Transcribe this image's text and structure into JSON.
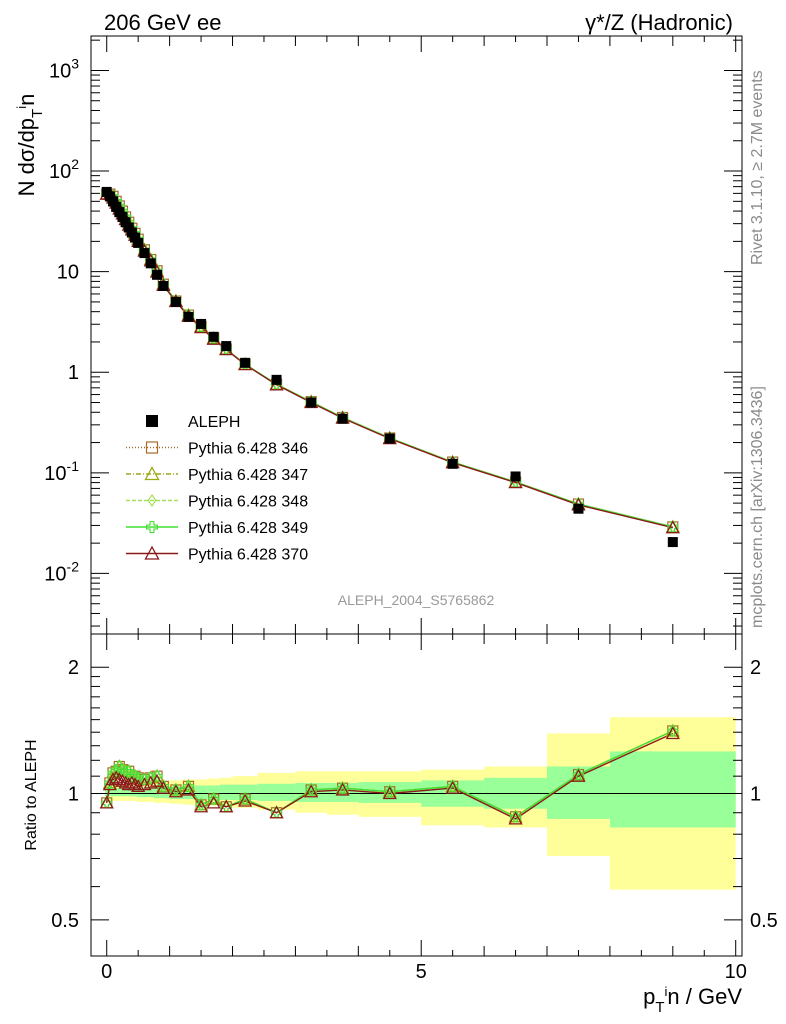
{
  "header": {
    "left": "206 GeV ee",
    "right": "γ*/Z (Hadronic)"
  },
  "side_labels": {
    "top": "Rivet 3.1.10, ≥ 2.7M events",
    "bottom": "mcplots.cern.ch [arXiv:1306.3436]"
  },
  "analysis_label": "ALEPH_2004_S5765862",
  "colors": {
    "data": "#000000",
    "p346": "#a86b2b",
    "p347": "#9aa814",
    "p348": "#a6e05a",
    "p349": "#44dd33",
    "p370": "#8b1a1a",
    "band_inner": "#99ff99",
    "band_outer": "#ffff99"
  },
  "chart_data": [
    {
      "type": "scatter",
      "panel": "main",
      "ylabel": "N dσ/dpTin",
      "yscale": "log",
      "ylim": [
        0.0025,
        2200
      ],
      "xlim": [
        -0.25,
        10.1
      ],
      "yticks": [
        "10^3",
        "10^2",
        "10",
        "1",
        "10^-1",
        "10^-2"
      ],
      "legend_placement": "lower-left",
      "x": [
        0.0,
        0.05,
        0.1,
        0.15,
        0.2,
        0.25,
        0.3,
        0.35,
        0.4,
        0.45,
        0.5,
        0.6,
        0.7,
        0.8,
        0.9,
        1.1,
        1.3,
        1.5,
        1.7,
        1.9,
        2.2,
        2.7,
        3.25,
        3.75,
        4.5,
        5.5,
        6.5,
        7.5,
        9.0
      ],
      "series": [
        {
          "name": "ALEPH",
          "marker": "square",
          "values": [
            62,
            56,
            50,
            44,
            39,
            35,
            31,
            27.5,
            24.5,
            21.8,
            19.3,
            15.3,
            12.1,
            9.3,
            7.2,
            5.0,
            3.55,
            3.02,
            2.25,
            1.82,
            1.24,
            0.84,
            0.5,
            0.345,
            0.219,
            0.123,
            0.092,
            0.044,
            0.0205
          ]
        },
        {
          "name": "Pythia 6.428 346",
          "marker": "open-square",
          "values": [
            59,
            59,
            56,
            50,
            45,
            40,
            35,
            31,
            27,
            24,
            21,
            16.5,
            13.2,
            10.2,
            7.5,
            5.1,
            3.7,
            2.85,
            2.18,
            1.7,
            1.2,
            0.76,
            0.51,
            0.355,
            0.222,
            0.128,
            0.081,
            0.049,
            0.029
          ]
        },
        {
          "name": "Pythia 6.428 347",
          "marker": "open-triangle",
          "values": [
            59,
            59,
            56,
            50,
            45,
            40,
            35,
            31,
            27,
            24,
            21,
            16.5,
            13.2,
            10.2,
            7.5,
            5.1,
            3.7,
            2.85,
            2.18,
            1.7,
            1.2,
            0.76,
            0.51,
            0.355,
            0.222,
            0.128,
            0.081,
            0.049,
            0.029
          ]
        },
        {
          "name": "Pythia 6.428 348",
          "marker": "open-diamond",
          "values": [
            59,
            59,
            56,
            50,
            45,
            40,
            35,
            31,
            27,
            24,
            21,
            16.5,
            13.2,
            10.2,
            7.5,
            5.1,
            3.7,
            2.85,
            2.18,
            1.7,
            1.2,
            0.76,
            0.51,
            0.355,
            0.222,
            0.128,
            0.081,
            0.049,
            0.029
          ]
        },
        {
          "name": "Pythia 6.428 349",
          "marker": "open-cross",
          "values": [
            59,
            59,
            56,
            50,
            45,
            40,
            35,
            31,
            27,
            24,
            21,
            16.5,
            13.2,
            10.2,
            7.5,
            5.1,
            3.7,
            2.85,
            2.18,
            1.7,
            1.2,
            0.76,
            0.51,
            0.355,
            0.222,
            0.128,
            0.081,
            0.049,
            0.029
          ]
        },
        {
          "name": "Pythia 6.428 370",
          "marker": "open-triangle",
          "values": [
            59,
            59,
            54,
            48,
            42,
            37.5,
            33,
            29,
            26,
            23,
            20,
            16,
            12.8,
            9.9,
            7.3,
            5.05,
            3.6,
            2.78,
            2.13,
            1.68,
            1.19,
            0.75,
            0.5,
            0.35,
            0.219,
            0.126,
            0.08,
            0.048,
            0.0285
          ]
        }
      ]
    },
    {
      "type": "line",
      "panel": "ratio",
      "xlabel": "pTin / GeV",
      "ylabel": "Ratio to ALEPH",
      "xlim": [
        -0.25,
        10.1
      ],
      "yscale": "log",
      "ylim": [
        0.41,
        2.4
      ],
      "xticks": [
        "0",
        "5",
        "10"
      ],
      "yticks": [
        "0.5",
        "1",
        "2"
      ],
      "x": [
        0.0,
        0.05,
        0.1,
        0.15,
        0.2,
        0.25,
        0.3,
        0.35,
        0.4,
        0.45,
        0.5,
        0.6,
        0.7,
        0.8,
        0.9,
        1.1,
        1.3,
        1.5,
        1.7,
        1.9,
        2.2,
        2.7,
        3.25,
        3.75,
        4.5,
        5.5,
        6.5,
        7.5,
        9.0
      ],
      "band_edges": [
        -0.025,
        0.025,
        0.075,
        0.125,
        0.175,
        0.225,
        0.275,
        0.325,
        0.375,
        0.425,
        0.475,
        0.55,
        0.65,
        0.75,
        0.85,
        1.0,
        1.2,
        1.4,
        1.6,
        1.8,
        2.0,
        2.4,
        3.0,
        3.5,
        4.0,
        5.0,
        6.0,
        7.0,
        8.0,
        10.0
      ],
      "band_inner": [
        [
          0.985,
          1.03
        ],
        [
          0.985,
          1.03
        ],
        [
          0.985,
          1.03
        ],
        [
          0.985,
          1.03
        ],
        [
          0.985,
          1.03
        ],
        [
          0.985,
          1.03
        ],
        [
          0.985,
          1.03
        ],
        [
          0.985,
          1.03
        ],
        [
          0.985,
          1.03
        ],
        [
          0.985,
          1.03
        ],
        [
          0.98,
          1.035
        ],
        [
          0.98,
          1.035
        ],
        [
          0.98,
          1.035
        ],
        [
          0.975,
          1.04
        ],
        [
          0.975,
          1.04
        ],
        [
          0.97,
          1.04
        ],
        [
          0.97,
          1.045
        ],
        [
          0.97,
          1.045
        ],
        [
          0.965,
          1.045
        ],
        [
          0.965,
          1.05
        ],
        [
          0.965,
          1.05
        ],
        [
          0.96,
          1.055
        ],
        [
          0.955,
          1.06
        ],
        [
          0.955,
          1.06
        ],
        [
          0.95,
          1.065
        ],
        [
          0.93,
          1.075
        ],
        [
          0.92,
          1.09
        ],
        [
          0.87,
          1.16
        ],
        [
          0.83,
          1.26
        ]
      ],
      "band_outer": [
        [
          0.96,
          1.05
        ],
        [
          0.96,
          1.05
        ],
        [
          0.96,
          1.05
        ],
        [
          0.96,
          1.05
        ],
        [
          0.96,
          1.05
        ],
        [
          0.96,
          1.05
        ],
        [
          0.96,
          1.05
        ],
        [
          0.96,
          1.05
        ],
        [
          0.96,
          1.05
        ],
        [
          0.96,
          1.05
        ],
        [
          0.955,
          1.06
        ],
        [
          0.955,
          1.06
        ],
        [
          0.955,
          1.06
        ],
        [
          0.95,
          1.07
        ],
        [
          0.95,
          1.07
        ],
        [
          0.945,
          1.075
        ],
        [
          0.94,
          1.08
        ],
        [
          0.94,
          1.08
        ],
        [
          0.935,
          1.085
        ],
        [
          0.93,
          1.09
        ],
        [
          0.925,
          1.1
        ],
        [
          0.915,
          1.12
        ],
        [
          0.9,
          1.13
        ],
        [
          0.89,
          1.13
        ],
        [
          0.88,
          1.13
        ],
        [
          0.84,
          1.14
        ],
        [
          0.83,
          1.16
        ],
        [
          0.71,
          1.39
        ],
        [
          0.59,
          1.52
        ]
      ],
      "series": [
        {
          "name": "Pythia 6.428 346",
          "values": [
            0.95,
            1.06,
            1.12,
            1.13,
            1.16,
            1.14,
            1.13,
            1.13,
            1.1,
            1.1,
            1.09,
            1.08,
            1.09,
            1.1,
            1.04,
            1.02,
            1.04,
            0.94,
            0.97,
            0.93,
            0.97,
            0.9,
            1.02,
            1.03,
            1.01,
            1.04,
            0.88,
            1.11,
            1.41
          ]
        },
        {
          "name": "Pythia 6.428 347",
          "values": [
            0.95,
            1.06,
            1.12,
            1.13,
            1.16,
            1.14,
            1.13,
            1.13,
            1.1,
            1.1,
            1.09,
            1.08,
            1.09,
            1.1,
            1.04,
            1.02,
            1.04,
            0.94,
            0.97,
            0.93,
            0.97,
            0.9,
            1.02,
            1.03,
            1.01,
            1.04,
            0.88,
            1.11,
            1.41
          ]
        },
        {
          "name": "Pythia 6.428 348",
          "values": [
            0.95,
            1.06,
            1.12,
            1.13,
            1.16,
            1.14,
            1.13,
            1.13,
            1.1,
            1.1,
            1.09,
            1.08,
            1.09,
            1.1,
            1.04,
            1.02,
            1.04,
            0.94,
            0.97,
            0.93,
            0.97,
            0.9,
            1.02,
            1.03,
            1.01,
            1.04,
            0.88,
            1.11,
            1.41
          ]
        },
        {
          "name": "Pythia 6.428 349",
          "values": [
            0.95,
            1.06,
            1.12,
            1.13,
            1.16,
            1.14,
            1.13,
            1.13,
            1.1,
            1.1,
            1.09,
            1.08,
            1.09,
            1.1,
            1.04,
            1.02,
            1.04,
            0.94,
            0.97,
            0.93,
            0.97,
            0.9,
            1.02,
            1.03,
            1.01,
            1.04,
            0.88,
            1.11,
            1.41
          ]
        },
        {
          "name": "Pythia 6.428 370",
          "values": [
            0.95,
            1.05,
            1.08,
            1.09,
            1.08,
            1.07,
            1.06,
            1.05,
            1.06,
            1.05,
            1.04,
            1.05,
            1.06,
            1.07,
            1.03,
            1.01,
            1.02,
            0.93,
            0.95,
            0.93,
            0.96,
            0.9,
            1.01,
            1.02,
            1.0,
            1.03,
            0.87,
            1.1,
            1.39
          ]
        }
      ]
    }
  ]
}
